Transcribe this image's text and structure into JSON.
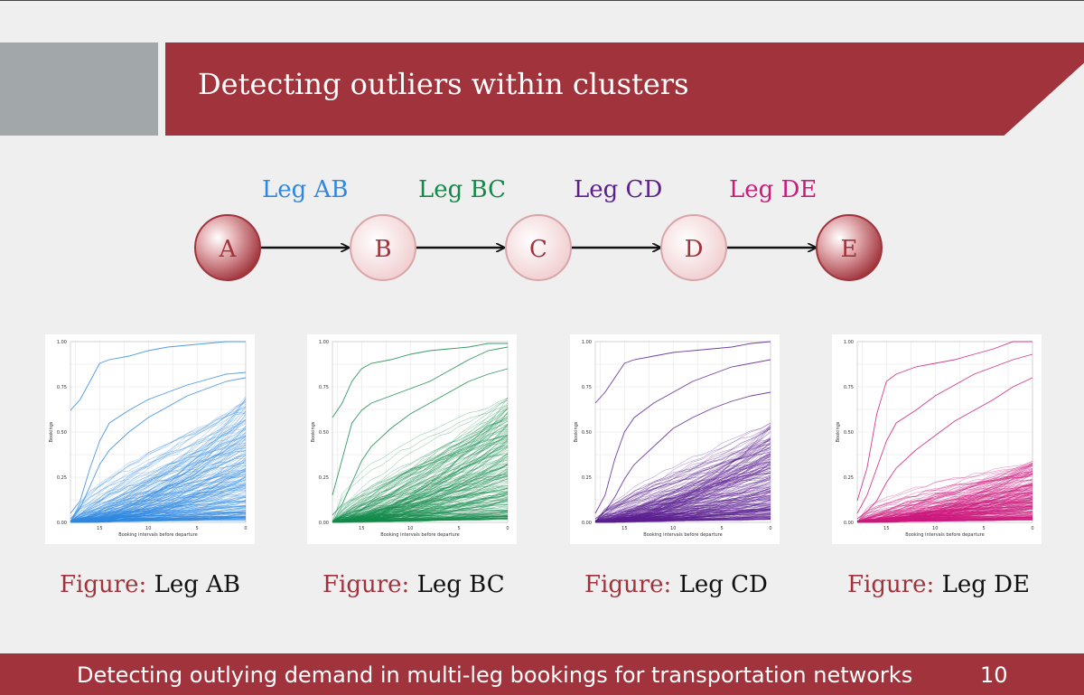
{
  "slide": {
    "title": "Detecting outliers within clusters",
    "footer": "Detecting outlying demand in multi-leg bookings for transportation networks",
    "page_number": "10"
  },
  "network": {
    "nodes": [
      "A",
      "B",
      "C",
      "D",
      "E"
    ],
    "legs": [
      {
        "label": "Leg AB",
        "color": "#2f88e0"
      },
      {
        "label": "Leg BC",
        "color": "#138a4a"
      },
      {
        "label": "Leg CD",
        "color": "#5b1f8f"
      },
      {
        "label": "Leg DE",
        "color": "#cc1a7d"
      }
    ],
    "accent": "#a0333b"
  },
  "captions": [
    {
      "prefix": "Figure:",
      "text": "Leg AB"
    },
    {
      "prefix": "Figure:",
      "text": "Leg BC"
    },
    {
      "prefix": "Figure:",
      "text": "Leg CD"
    },
    {
      "prefix": "Figure:",
      "text": "Leg DE"
    }
  ],
  "chart_data": [
    {
      "type": "line",
      "xlabel": "Booking intervals before departure",
      "ylabel": "Bookings",
      "xlim": [
        18,
        0
      ],
      "ylim": [
        0,
        1
      ],
      "x_ticks": [
        "15",
        "10",
        "5",
        "0"
      ],
      "y_ticks": [
        "0.00",
        "0.25",
        "0.50",
        "0.75",
        "1.00"
      ],
      "color": "#2f88e0",
      "grid": true,
      "highlight_series": [
        {
          "x": [
            18,
            17,
            16,
            15,
            14,
            12,
            10,
            8,
            6,
            4,
            2,
            0
          ],
          "y": [
            0.62,
            0.68,
            0.78,
            0.88,
            0.9,
            0.92,
            0.95,
            0.97,
            0.98,
            0.99,
            1.0,
            1.0
          ]
        },
        {
          "x": [
            18,
            17,
            16,
            15,
            14,
            12,
            10,
            8,
            6,
            4,
            2,
            0
          ],
          "y": [
            0.05,
            0.12,
            0.3,
            0.45,
            0.55,
            0.62,
            0.68,
            0.72,
            0.76,
            0.79,
            0.82,
            0.83
          ]
        },
        {
          "x": [
            18,
            17,
            16,
            15,
            14,
            12,
            10,
            8,
            6,
            4,
            2,
            0
          ],
          "y": [
            0.02,
            0.08,
            0.2,
            0.32,
            0.4,
            0.5,
            0.58,
            0.64,
            0.7,
            0.74,
            0.78,
            0.8
          ]
        }
      ],
      "bulk": {
        "series_count": 220,
        "final_max": 0.8,
        "final_median": 0.25
      }
    },
    {
      "type": "line",
      "xlabel": "Booking intervals before departure",
      "ylabel": "Bookings",
      "xlim": [
        18,
        0
      ],
      "ylim": [
        0,
        1
      ],
      "x_ticks": [
        "15",
        "10",
        "5",
        "0"
      ],
      "y_ticks": [
        "0.00",
        "0.25",
        "0.50",
        "0.75",
        "1.00"
      ],
      "color": "#138a4a",
      "grid": true,
      "highlight_series": [
        {
          "x": [
            18,
            17,
            16,
            15,
            14,
            12,
            10,
            8,
            6,
            4,
            2,
            0
          ],
          "y": [
            0.58,
            0.66,
            0.78,
            0.85,
            0.88,
            0.9,
            0.93,
            0.95,
            0.96,
            0.97,
            0.99,
            0.99
          ]
        },
        {
          "x": [
            18,
            17,
            16,
            15,
            14,
            12,
            10,
            8,
            6,
            4,
            2,
            0
          ],
          "y": [
            0.15,
            0.35,
            0.55,
            0.62,
            0.66,
            0.7,
            0.74,
            0.78,
            0.84,
            0.9,
            0.95,
            0.97
          ]
        },
        {
          "x": [
            18,
            17,
            16,
            15,
            14,
            12,
            10,
            8,
            6,
            4,
            2,
            0
          ],
          "y": [
            0.04,
            0.1,
            0.22,
            0.34,
            0.42,
            0.52,
            0.6,
            0.66,
            0.72,
            0.78,
            0.82,
            0.85
          ]
        }
      ],
      "bulk": {
        "series_count": 220,
        "final_max": 0.78,
        "final_median": 0.25
      }
    },
    {
      "type": "line",
      "xlabel": "Booking intervals before departure",
      "ylabel": "Bookings",
      "xlim": [
        18,
        0
      ],
      "ylim": [
        0,
        1
      ],
      "x_ticks": [
        "15",
        "10",
        "5",
        "0"
      ],
      "y_ticks": [
        "0.00",
        "0.25",
        "0.50",
        "0.75",
        "1.00"
      ],
      "color": "#5b1f8f",
      "grid": true,
      "highlight_series": [
        {
          "x": [
            18,
            17,
            16,
            15,
            14,
            12,
            10,
            8,
            6,
            4,
            2,
            0
          ],
          "y": [
            0.66,
            0.72,
            0.8,
            0.88,
            0.9,
            0.92,
            0.94,
            0.95,
            0.96,
            0.97,
            0.99,
            1.0
          ]
        },
        {
          "x": [
            18,
            17,
            16,
            15,
            14,
            12,
            10,
            8,
            6,
            4,
            2,
            0
          ],
          "y": [
            0.05,
            0.15,
            0.35,
            0.5,
            0.58,
            0.66,
            0.72,
            0.78,
            0.82,
            0.86,
            0.88,
            0.9
          ]
        },
        {
          "x": [
            18,
            17,
            16,
            15,
            14,
            12,
            10,
            8,
            6,
            4,
            2,
            0
          ],
          "y": [
            0.02,
            0.06,
            0.14,
            0.24,
            0.32,
            0.42,
            0.52,
            0.58,
            0.63,
            0.67,
            0.7,
            0.72
          ]
        }
      ],
      "bulk": {
        "series_count": 220,
        "final_max": 0.7,
        "final_median": 0.2
      }
    },
    {
      "type": "line",
      "xlabel": "Booking intervals before departure",
      "ylabel": "Bookings",
      "xlim": [
        18,
        0
      ],
      "ylim": [
        0,
        1
      ],
      "x_ticks": [
        "15",
        "10",
        "5",
        "0"
      ],
      "y_ticks": [
        "0.00",
        "0.25",
        "0.50",
        "0.75",
        "1.00"
      ],
      "color": "#cc1a7d",
      "grid": true,
      "highlight_series": [
        {
          "x": [
            18,
            17,
            16,
            15,
            14,
            12,
            10,
            8,
            6,
            4,
            2,
            0
          ],
          "y": [
            0.12,
            0.3,
            0.6,
            0.78,
            0.82,
            0.86,
            0.88,
            0.9,
            0.93,
            0.96,
            1.0,
            1.0
          ]
        },
        {
          "x": [
            18,
            17,
            16,
            15,
            14,
            12,
            10,
            8,
            6,
            4,
            2,
            0
          ],
          "y": [
            0.05,
            0.15,
            0.3,
            0.45,
            0.55,
            0.62,
            0.7,
            0.76,
            0.82,
            0.86,
            0.9,
            0.93
          ]
        },
        {
          "x": [
            18,
            17,
            16,
            15,
            14,
            12,
            10,
            8,
            6,
            4,
            2,
            0
          ],
          "y": [
            0.02,
            0.06,
            0.12,
            0.22,
            0.3,
            0.4,
            0.48,
            0.56,
            0.62,
            0.68,
            0.75,
            0.8
          ]
        }
      ],
      "bulk": {
        "series_count": 220,
        "final_max": 0.6,
        "final_median": 0.12
      }
    }
  ]
}
